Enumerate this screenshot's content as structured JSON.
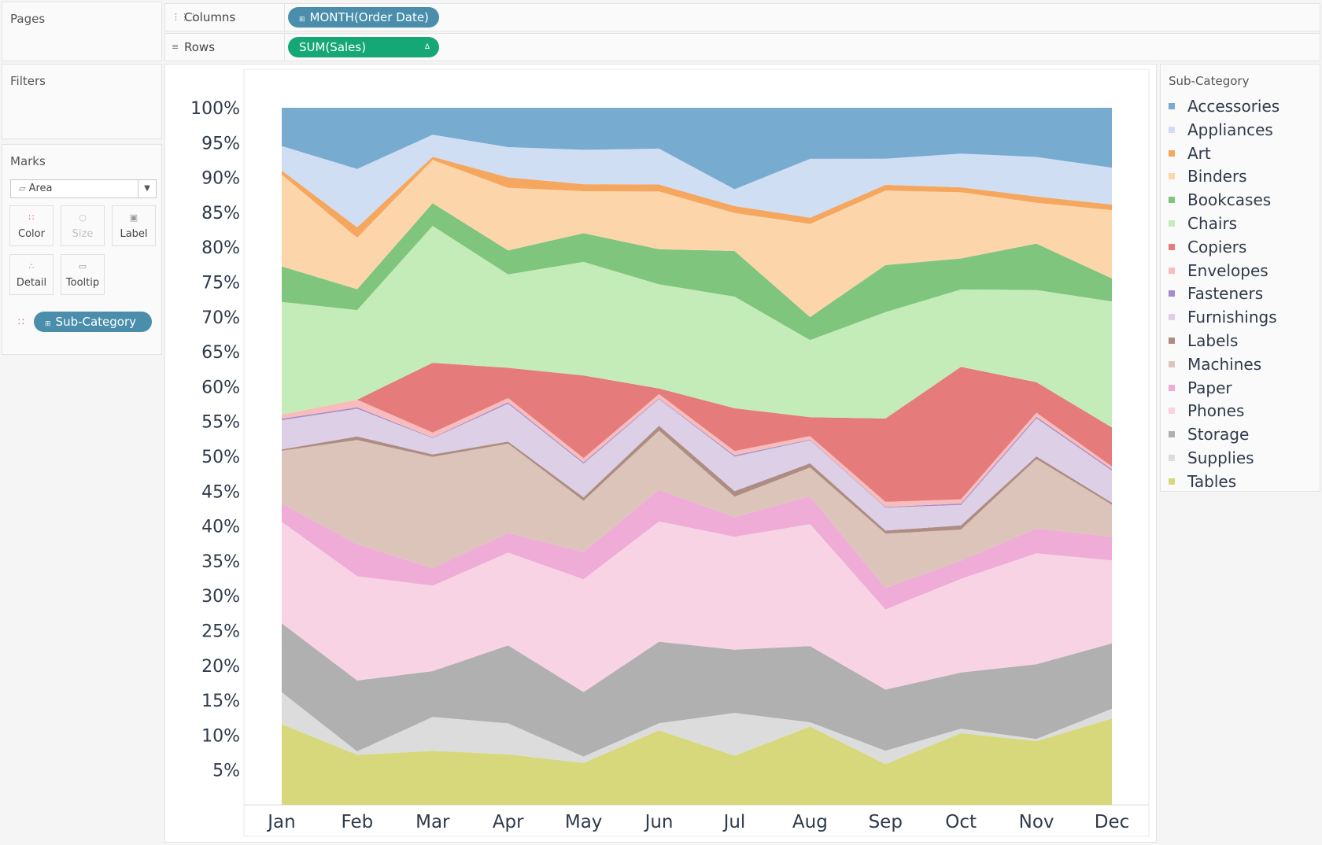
{
  "pages": {
    "title": "Pages"
  },
  "columns_shelf": {
    "label": "Columns",
    "pill": "MONTH(Order Date)",
    "pill_color": "#4a8eac"
  },
  "rows_shelf": {
    "label": "Rows",
    "pill": "SUM(Sales)",
    "pill_color": "#16a776",
    "delta_icon": "delta-icon"
  },
  "filters": {
    "title": "Filters"
  },
  "marks": {
    "title": "Marks",
    "mark_type": "Area",
    "buttons": {
      "color": "Color",
      "size": "Size",
      "label": "Label",
      "detail": "Detail",
      "tooltip": "Tooltip"
    },
    "color_field": "Sub-Category"
  },
  "legend": {
    "title": "Sub-Category",
    "items": [
      {
        "label": "Accessories",
        "color": "#78abd0"
      },
      {
        "label": "Appliances",
        "color": "#cfdef2"
      },
      {
        "label": "Art",
        "color": "#f6a75f"
      },
      {
        "label": "Binders",
        "color": "#fdd5ab"
      },
      {
        "label": "Bookcases",
        "color": "#80c57e"
      },
      {
        "label": "Chairs",
        "color": "#c3ecb8"
      },
      {
        "label": "Copiers",
        "color": "#e57b7b"
      },
      {
        "label": "Envelopes",
        "color": "#f8bcbc"
      },
      {
        "label": "Fasteners",
        "color": "#a48cc9"
      },
      {
        "label": "Furnishings",
        "color": "#dccfe6"
      },
      {
        "label": "Labels",
        "color": "#ad8d83"
      },
      {
        "label": "Machines",
        "color": "#dcc4bb"
      },
      {
        "label": "Paper",
        "color": "#eeacd7"
      },
      {
        "label": "Phones",
        "color": "#f8d3e4"
      },
      {
        "label": "Storage",
        "color": "#b0b0b0"
      },
      {
        "label": "Supplies",
        "color": "#dcdcdc"
      },
      {
        "label": "Tables",
        "color": "#d7d87c"
      }
    ]
  },
  "chart_data": {
    "type": "area",
    "stacked": true,
    "normalized": "percent of total",
    "categories": [
      "Jan",
      "Feb",
      "Mar",
      "Apr",
      "May",
      "Jun",
      "Jul",
      "Aug",
      "Sep",
      "Oct",
      "Nov",
      "Dec"
    ],
    "y_ticks": [
      "100%",
      "95%",
      "90%",
      "85%",
      "80%",
      "75%",
      "70%",
      "65%",
      "60%",
      "55%",
      "50%",
      "45%",
      "40%",
      "35%",
      "30%",
      "25%",
      "20%",
      "15%",
      "10%",
      "5%"
    ],
    "ylim": [
      0,
      100
    ],
    "series": [
      {
        "name": "Tables",
        "values": [
          11.6,
          7.2,
          8.6,
          7.2,
          6.0,
          10.6,
          7.0,
          11.2,
          6.4,
          10.2,
          9.2,
          12.4
        ]
      },
      {
        "name": "Supplies",
        "values": [
          4.6,
          0.5,
          5.4,
          4.4,
          0.9,
          1.0,
          6.1,
          0.6,
          2.1,
          0.6,
          0.3,
          1.4
        ]
      },
      {
        "name": "Storage",
        "values": [
          9.9,
          10.2,
          7.3,
          11.1,
          9.2,
          11.6,
          9.0,
          10.9,
          9.6,
          8.0,
          10.8,
          9.4
        ]
      },
      {
        "name": "Phones",
        "values": [
          14.6,
          15.0,
          13.6,
          13.2,
          16.1,
          17.1,
          16.1,
          17.4,
          12.6,
          13.3,
          16.0,
          11.9
        ]
      },
      {
        "name": "Paper",
        "values": [
          2.6,
          4.6,
          2.8,
          2.8,
          3.9,
          4.5,
          2.8,
          4.0,
          3.4,
          2.6,
          3.6,
          3.4
        ]
      },
      {
        "name": "Machines",
        "values": [
          7.6,
          15.0,
          17.7,
          12.7,
          7.3,
          8.4,
          2.9,
          4.1,
          8.5,
          4.4,
          10.0,
          4.6
        ]
      },
      {
        "name": "Labels",
        "values": [
          0.2,
          0.5,
          0.4,
          0.3,
          0.5,
          0.7,
          0.8,
          0.6,
          0.5,
          0.6,
          0.4,
          0.3
        ]
      },
      {
        "name": "Furnishings",
        "values": [
          4.2,
          4.0,
          2.6,
          5.4,
          4.8,
          3.8,
          4.9,
          3.3,
          3.6,
          2.9,
          5.5,
          4.6
        ]
      },
      {
        "name": "Fasteners",
        "values": [
          0.2,
          0.2,
          0.1,
          0.2,
          0.2,
          0.1,
          0.2,
          0.1,
          0.1,
          0.2,
          0.2,
          0.2
        ]
      },
      {
        "name": "Envelopes",
        "values": [
          0.6,
          1.1,
          0.8,
          0.6,
          0.6,
          0.6,
          0.6,
          0.5,
          0.8,
          0.6,
          0.6,
          0.4
        ]
      },
      {
        "name": "Copiers",
        "values": [
          0,
          0,
          11.1,
          4.3,
          11.8,
          0.8,
          6.1,
          2.7,
          13.1,
          18.8,
          4.4,
          5.6
        ]
      },
      {
        "name": "Chairs",
        "values": [
          16.2,
          12.9,
          21.8,
          13.3,
          16.2,
          14.8,
          15.9,
          11.0,
          16.7,
          11.0,
          13.3,
          18.1
        ]
      },
      {
        "name": "Bookcases",
        "values": [
          5.1,
          3.0,
          3.6,
          3.4,
          4.1,
          5.0,
          6.5,
          3.3,
          7.4,
          4.4,
          6.7,
          3.3
        ]
      },
      {
        "name": "Binders",
        "values": [
          13.2,
          7.4,
          6.9,
          8.9,
          6.0,
          8.2,
          5.4,
          13.3,
          11.7,
          9.4,
          5.9,
          9.8
        ]
      },
      {
        "name": "Art",
        "values": [
          0.6,
          1.5,
          0.5,
          1.5,
          1.0,
          1.0,
          1.0,
          0.9,
          0.9,
          0.7,
          0.9,
          0.8
        ]
      },
      {
        "name": "Appliances",
        "values": [
          3.5,
          8.4,
          3.5,
          4.3,
          4.9,
          5.1,
          2.4,
          8.4,
          4.1,
          4.8,
          5.7,
          5.3
        ]
      },
      {
        "name": "Accessories",
        "values": [
          5.5,
          8.8,
          4.3,
          5.6,
          6.0,
          5.8,
          11.6,
          7.3,
          8.0,
          6.5,
          7.1,
          8.6
        ]
      }
    ]
  }
}
